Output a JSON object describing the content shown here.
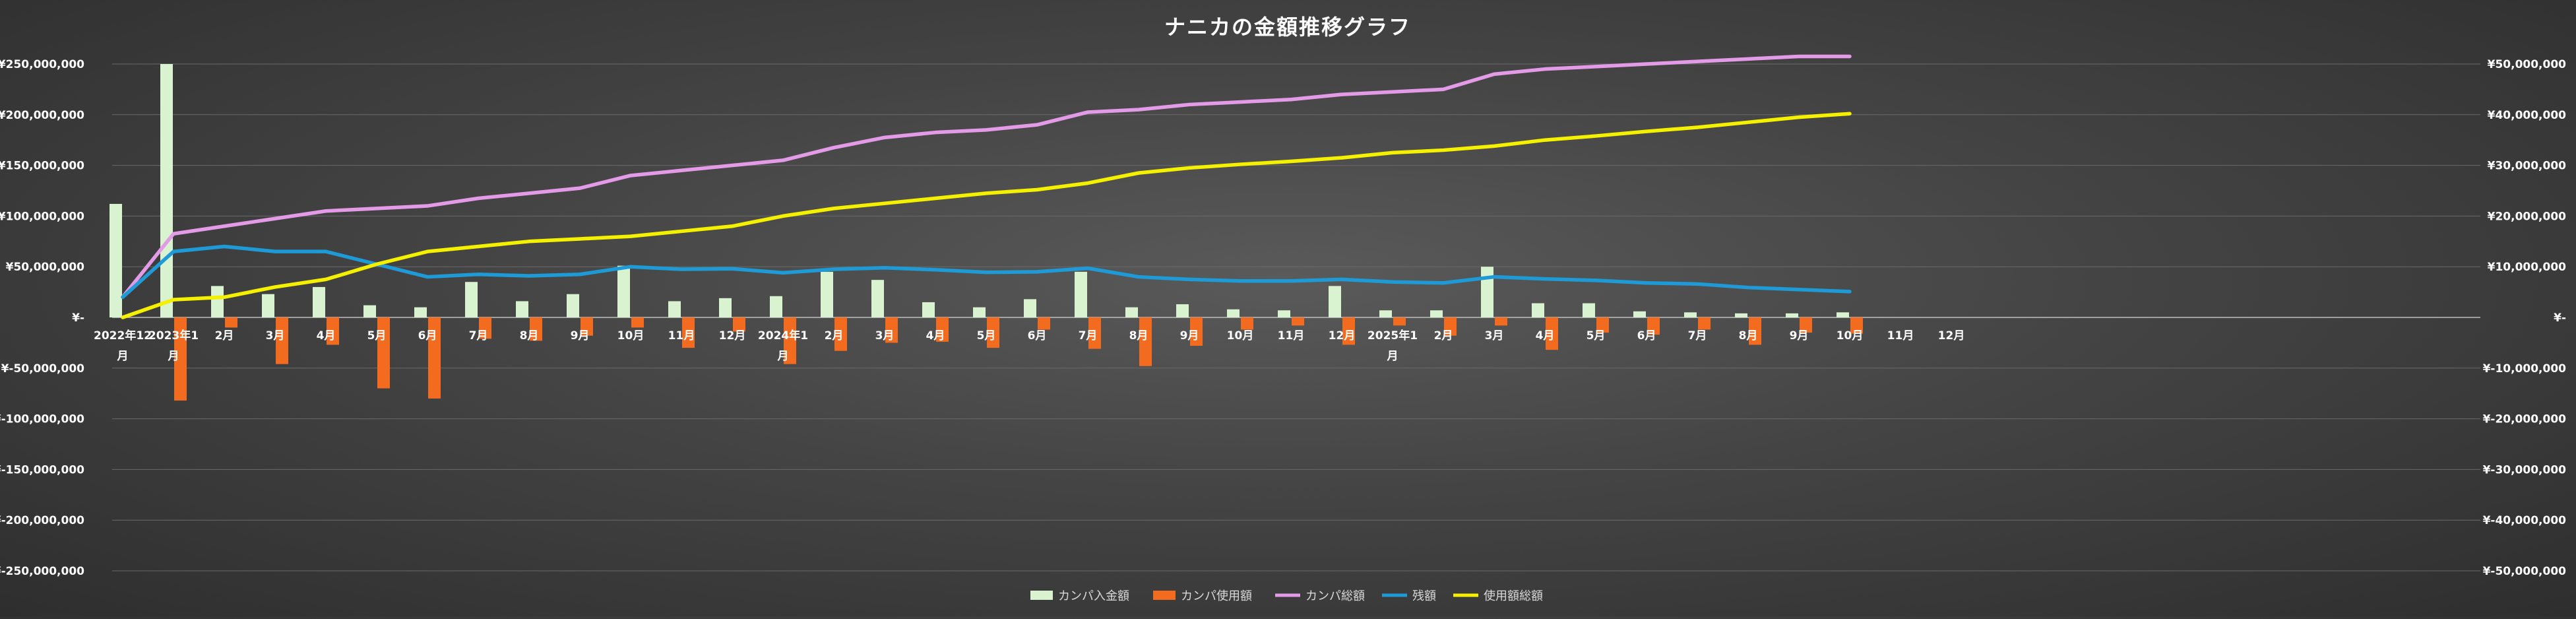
{
  "chart_data": {
    "type": "bar+line",
    "title": "ナニカの金額推移グラフ",
    "left_axis": {
      "range": [
        -250000000,
        250000000
      ],
      "ticks": [
        {
          "value": 250000000,
          "label": "¥250,000,000"
        },
        {
          "value": 200000000,
          "label": "¥200,000,000"
        },
        {
          "value": 150000000,
          "label": "¥150,000,000"
        },
        {
          "value": 100000000,
          "label": "¥100,000,000"
        },
        {
          "value": 50000000,
          "label": "¥50,000,000"
        },
        {
          "value": 0,
          "label": "¥-"
        },
        {
          "value": -50000000,
          "label": "¥-50,000,000"
        },
        {
          "value": -100000000,
          "label": "¥-100,000,000"
        },
        {
          "value": -150000000,
          "label": "¥-150,000,000"
        },
        {
          "value": -200000000,
          "label": "¥-200,000,000"
        },
        {
          "value": -250000000,
          "label": "¥-250,000,000"
        }
      ]
    },
    "right_axis": {
      "range": [
        -50000000,
        50000000
      ],
      "ticks": [
        {
          "value": 50000000,
          "label": "¥50,000,000"
        },
        {
          "value": 40000000,
          "label": "¥40,000,000"
        },
        {
          "value": 30000000,
          "label": "¥30,000,000"
        },
        {
          "value": 20000000,
          "label": "¥20,000,000"
        },
        {
          "value": 10000000,
          "label": "¥10,000,000"
        },
        {
          "value": 0,
          "label": "¥-"
        },
        {
          "value": -10000000,
          "label": "¥-10,000,000"
        },
        {
          "value": -20000000,
          "label": "¥-20,000,000"
        },
        {
          "value": -30000000,
          "label": "¥-30,000,000"
        },
        {
          "value": -40000000,
          "label": "¥-40,000,000"
        },
        {
          "value": -50000000,
          "label": "¥-50,000,000"
        }
      ]
    },
    "categories": [
      [
        "2022年12",
        "月"
      ],
      [
        "2023年1",
        "月"
      ],
      [
        "2月"
      ],
      [
        "3月"
      ],
      [
        "4月"
      ],
      [
        "5月"
      ],
      [
        "6月"
      ],
      [
        "7月"
      ],
      [
        "8月"
      ],
      [
        "9月"
      ],
      [
        "10月"
      ],
      [
        "11月"
      ],
      [
        "12月"
      ],
      [
        "2024年1",
        "月"
      ],
      [
        "2月"
      ],
      [
        "3月"
      ],
      [
        "4月"
      ],
      [
        "5月"
      ],
      [
        "6月"
      ],
      [
        "7月"
      ],
      [
        "8月"
      ],
      [
        "9月"
      ],
      [
        "10月"
      ],
      [
        "11月"
      ],
      [
        "12月"
      ],
      [
        "2025年1",
        "月"
      ],
      [
        "2月"
      ],
      [
        "3月"
      ],
      [
        "4月"
      ],
      [
        "5月"
      ],
      [
        "6月"
      ],
      [
        "7月"
      ],
      [
        "8月"
      ],
      [
        "9月"
      ],
      [
        "10月"
      ],
      [
        "11月"
      ],
      [
        "12月"
      ]
    ],
    "series": [
      {
        "name": "カンパ入金額",
        "kind": "bar",
        "axis": "left",
        "color": "#d9f2d0",
        "values": [
          112000000,
          250000000,
          31000000,
          23000000,
          30000000,
          12000000,
          10000000,
          35000000,
          16000000,
          23000000,
          51000000,
          16000000,
          19000000,
          21000000,
          45000000,
          37000000,
          15000000,
          10000000,
          18000000,
          45000000,
          10000000,
          13000000,
          8000000,
          7000000,
          31000000,
          7000000,
          7000000,
          50000000,
          14000000,
          14000000,
          6000000,
          5000000,
          4000000,
          4000000,
          5000000,
          null,
          null
        ]
      },
      {
        "name": "カンパ使用額",
        "kind": "bar",
        "axis": "left",
        "color": "#f26b1f",
        "values": [
          0,
          -82000000,
          -10000000,
          -46000000,
          -27000000,
          -70000000,
          -80000000,
          -21000000,
          -23000000,
          -18000000,
          -10000000,
          -30000000,
          -14000000,
          -46000000,
          -33000000,
          -25000000,
          -24000000,
          -30000000,
          -12000000,
          -31000000,
          -48000000,
          -28000000,
          -12000000,
          -8000000,
          -27000000,
          -8000000,
          -18000000,
          -8000000,
          -32000000,
          -15000000,
          -17000000,
          -12000000,
          -27000000,
          -15000000,
          -16000000,
          null,
          null
        ]
      },
      {
        "name": "カンパ総額",
        "kind": "line",
        "axis": "right",
        "color": "#e39be8",
        "values": [
          4000000,
          16500000,
          18000000,
          19500000,
          21000000,
          21500000,
          22000000,
          23500000,
          24500000,
          25500000,
          28000000,
          29000000,
          30000000,
          31000000,
          33500000,
          35500000,
          36500000,
          37000000,
          38000000,
          40500000,
          41000000,
          42000000,
          42500000,
          43000000,
          44000000,
          44500000,
          45000000,
          48000000,
          49000000,
          49500000,
          50000000,
          50500000,
          51000000,
          51500000,
          51500000,
          null,
          null
        ]
      },
      {
        "name": "残額",
        "kind": "line",
        "axis": "right",
        "color": "#1e9ad6",
        "values": [
          4000000,
          13000000,
          14000000,
          13000000,
          13000000,
          10500000,
          8000000,
          8500000,
          8200000,
          8500000,
          10000000,
          9500000,
          9600000,
          8800000,
          9500000,
          9800000,
          9400000,
          8900000,
          9000000,
          9700000,
          8000000,
          7500000,
          7200000,
          7200000,
          7500000,
          7000000,
          6800000,
          8000000,
          7600000,
          7300000,
          6800000,
          6600000,
          5900000,
          5500000,
          5100000,
          null,
          null
        ]
      },
      {
        "name": "使用額総額",
        "kind": "line",
        "axis": "right",
        "color": "#f5f000",
        "values": [
          0,
          3500000,
          4000000,
          6000000,
          7500000,
          10500000,
          13000000,
          14000000,
          15000000,
          15500000,
          16000000,
          17000000,
          18000000,
          20000000,
          21500000,
          22500000,
          23500000,
          24500000,
          25200000,
          26500000,
          28500000,
          29500000,
          30200000,
          30800000,
          31500000,
          32500000,
          33000000,
          33800000,
          35000000,
          35800000,
          36700000,
          37500000,
          38500000,
          39500000,
          40200000,
          null,
          null
        ]
      }
    ]
  }
}
